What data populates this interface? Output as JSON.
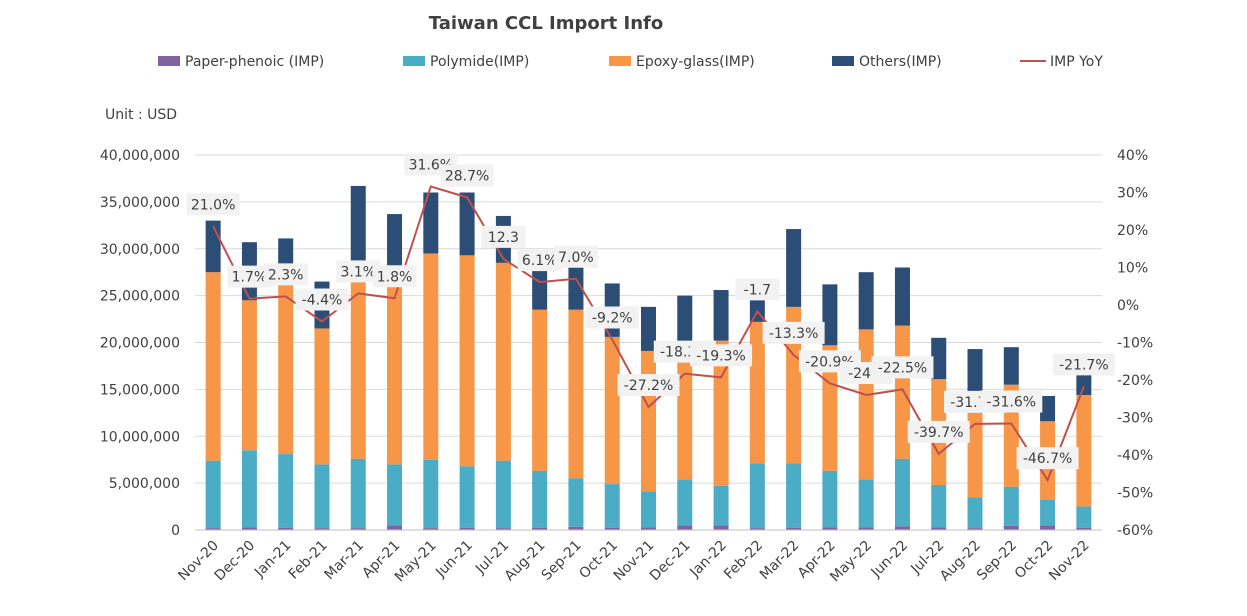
{
  "chart_data": {
    "type": "bar",
    "title": "Taiwan CCL Import Info",
    "unit_label": "Unit : USD",
    "categories": [
      "Nov-20",
      "Dec-20",
      "Jan-21",
      "Feb-21",
      "Mar-21",
      "Apr-21",
      "May-21",
      "Jun-21",
      "Jul-21",
      "Aug-21",
      "Sep-21",
      "Oct-21",
      "Nov-21",
      "Dec-21",
      "Jan-22",
      "Feb-22",
      "Mar-22",
      "Apr-22",
      "May-22",
      "Jun-22",
      "Jul-22",
      "Aug-22",
      "Sep-22",
      "Oct-22",
      "Nov-22"
    ],
    "stacked": true,
    "series": [
      {
        "name": "Paper-phenoic (IMP)",
        "color": "#8064a2",
        "axis": "left",
        "values": [
          200000,
          300000,
          250000,
          200000,
          200000,
          500000,
          200000,
          250000,
          200000,
          250000,
          350000,
          250000,
          300000,
          500000,
          500000,
          200000,
          250000,
          300000,
          300000,
          400000,
          300000,
          200000,
          450000,
          500000,
          250000
        ]
      },
      {
        "name": "Polymide(IMP)",
        "color": "#4bacc6",
        "axis": "left",
        "values": [
          7200000,
          8200000,
          7850000,
          6800000,
          7400000,
          6500000,
          7300000,
          6550000,
          7200000,
          6050000,
          5150000,
          4650000,
          3800000,
          4900000,
          4200000,
          6900000,
          6850000,
          6000000,
          5100000,
          7200000,
          4500000,
          3300000,
          4150000,
          2700000,
          2250000
        ]
      },
      {
        "name": "Epoxy-glass(IMP)",
        "color": "#f79646",
        "axis": "left",
        "values": [
          20100000,
          16000000,
          18500000,
          14500000,
          21100000,
          19000000,
          22000000,
          22500000,
          21100000,
          17200000,
          18000000,
          15700000,
          15000000,
          13700000,
          15500000,
          15100000,
          16700000,
          13400000,
          16000000,
          14200000,
          11300000,
          10000000,
          10900000,
          8400000,
          11900000
        ]
      },
      {
        "name": "Others(IMP)",
        "color": "#2c4d75",
        "axis": "left",
        "values": [
          5500000,
          6200000,
          4500000,
          5000000,
          8000000,
          7700000,
          6500000,
          6700000,
          5000000,
          5300000,
          5300000,
          5700000,
          4700000,
          5900000,
          5400000,
          3500000,
          8300000,
          6500000,
          6100000,
          6200000,
          4400000,
          5800000,
          4000000,
          2700000,
          4200000
        ]
      },
      {
        "name": "IMP YoY",
        "type": "line",
        "color": "#c0504d",
        "axis": "right",
        "values": [
          21.0,
          1.7,
          2.3,
          -4.4,
          3.1,
          1.8,
          31.6,
          28.7,
          12.3,
          6.1,
          7.0,
          -9.2,
          -27.2,
          -18.3,
          -19.3,
          -1.7,
          -13.3,
          -20.9,
          -24.0,
          -22.5,
          -39.7,
          -31.7,
          -31.6,
          -46.7,
          -21.7
        ]
      }
    ],
    "data_labels": [
      "21.0%",
      "1.7%",
      "2.3%",
      "-4.4%",
      "3.1%",
      "1.8%",
      "31.6%",
      "28.7%",
      "12.3",
      "6.1%",
      "7.0%",
      "-9.2%",
      "-27.2%",
      "-18.3%",
      "-19.3%",
      "-1.7",
      "-13.3%",
      "-20.9%",
      "-24.0",
      "-22.5%",
      "-39.7%",
      "-31.7%",
      "-31.6%",
      "-46.7%",
      "-21.7%"
    ],
    "y_left": {
      "range": [
        0,
        40000000
      ],
      "ticks": [
        "0",
        "5,000,000",
        "10,000,000",
        "15,000,000",
        "20,000,000",
        "25,000,000",
        "30,000,000",
        "35,000,000",
        "40,000,000"
      ]
    },
    "y_right": {
      "range": [
        -60,
        40
      ],
      "ticks": [
        "-60%",
        "-50%",
        "-40%",
        "-30%",
        "-20%",
        "-10%",
        "0%",
        "10%",
        "20%",
        "30%",
        "40%"
      ]
    },
    "grid": true,
    "legend": "top"
  }
}
